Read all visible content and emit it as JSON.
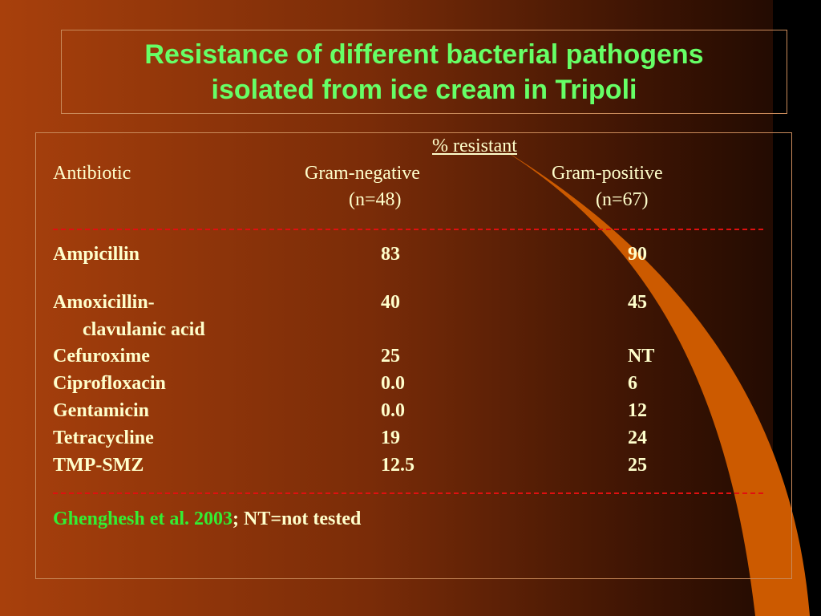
{
  "title_lines": [
    "Resistance of different bacterial pathogens",
    "isolated from ice cream in Tripoli"
  ],
  "table": {
    "group_header": "% resistant",
    "first_column": "Antibiotic",
    "columns": [
      {
        "name": "Gram-negative",
        "n": "(n=48)"
      },
      {
        "name": "Gram-positive",
        "n": "(n=67)"
      }
    ],
    "rows": [
      {
        "antibiotic": [
          "Ampicillin"
        ],
        "values": [
          "83",
          "90"
        ]
      },
      {
        "antibiotic": [
          "Amoxicillin-",
          "clavulanic acid"
        ],
        "values": [
          "40",
          "45"
        ]
      },
      {
        "antibiotic": [
          "Cefuroxime"
        ],
        "values": [
          "25",
          "NT"
        ]
      },
      {
        "antibiotic": [
          "Ciprofloxacin"
        ],
        "values": [
          "0.0",
          "6"
        ]
      },
      {
        "antibiotic": [
          "Gentamicin"
        ],
        "values": [
          "0.0",
          "12"
        ]
      },
      {
        "antibiotic": [
          "Tetracycline"
        ],
        "values": [
          "19",
          "24"
        ]
      },
      {
        "antibiotic": [
          "TMP-SMZ"
        ],
        "values": [
          "12.5",
          "25"
        ]
      }
    ]
  },
  "footer": {
    "source": "Ghenghesh et al. 2003",
    "note": "; NT=not tested"
  }
}
